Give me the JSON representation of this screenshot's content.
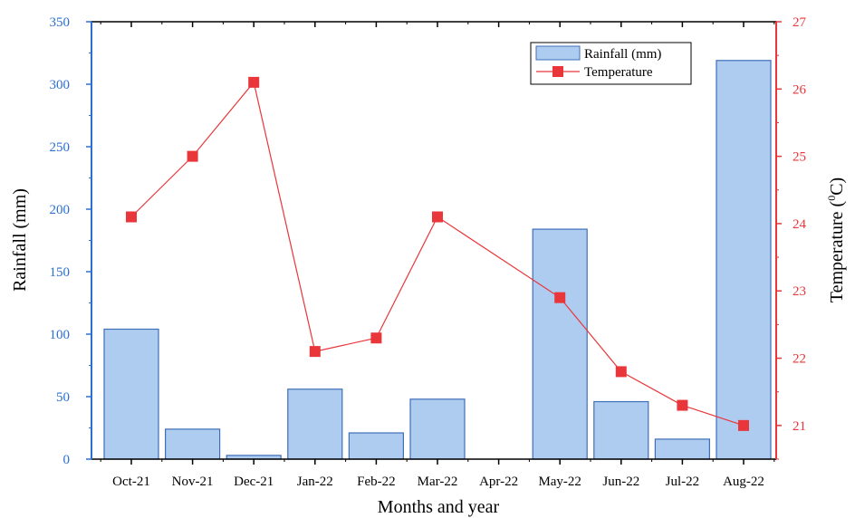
{
  "chart_data": {
    "type": "bar",
    "categories": [
      "Oct-21",
      "Nov-21",
      "Dec-21",
      "Jan-22",
      "Feb-22",
      "Mar-22",
      "Apr-22",
      "May-22",
      "Jun-22",
      "Jul-22",
      "Aug-22"
    ],
    "xlabel": "Months and year",
    "ylabel": "Rainfall (mm)",
    "y2label_base": "Temperature (",
    "y2label_sup": "0",
    "y2label_end": "C)",
    "ylim": [
      0,
      350
    ],
    "y2lim": [
      20.5,
      27
    ],
    "yticks": [
      "0",
      "50",
      "100",
      "150",
      "200",
      "250",
      "300",
      "350"
    ],
    "y2ticks": [
      "21",
      "22",
      "23",
      "24",
      "25",
      "26",
      "27"
    ],
    "legend_position": "top-right",
    "grid": false,
    "series": [
      {
        "name": "Rainfall (mm)",
        "type": "bar",
        "axis": "left",
        "values": [
          104,
          24,
          3,
          56,
          21,
          48,
          0,
          184,
          46,
          16,
          319
        ]
      },
      {
        "name": "Temperature",
        "type": "line",
        "axis": "right",
        "values": [
          24.1,
          25.0,
          26.1,
          22.1,
          22.3,
          24.1,
          null,
          22.9,
          21.8,
          21.3,
          21.0
        ]
      }
    ],
    "colors": {
      "bar_fill": "#aecbf0",
      "bar_stroke": "#3f6fb7",
      "line": "#e8363a",
      "marker": "#e8363a",
      "left_axis": "#2a6fd1",
      "right_axis": "#e8363a",
      "bottom_axis": "#000000"
    }
  }
}
